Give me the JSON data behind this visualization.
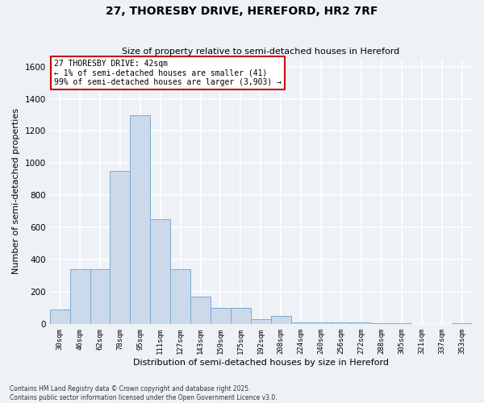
{
  "title_line1": "27, THORESBY DRIVE, HEREFORD, HR2 7RF",
  "title_line2": "Size of property relative to semi-detached houses in Hereford",
  "xlabel": "Distribution of semi-detached houses by size in Hereford",
  "ylabel": "Number of semi-detached properties",
  "annotation_title": "27 THORESBY DRIVE: 42sqm",
  "annotation_line2": "← 1% of semi-detached houses are smaller (41)",
  "annotation_line3": "99% of semi-detached houses are larger (3,903) →",
  "footer_line1": "Contains HM Land Registry data © Crown copyright and database right 2025.",
  "footer_line2": "Contains public sector information licensed under the Open Government Licence v3.0.",
  "categories": [
    "30sqm",
    "46sqm",
    "62sqm",
    "78sqm",
    "95sqm",
    "111sqm",
    "127sqm",
    "143sqm",
    "159sqm",
    "175sqm",
    "192sqm",
    "208sqm",
    "224sqm",
    "240sqm",
    "256sqm",
    "272sqm",
    "288sqm",
    "305sqm",
    "321sqm",
    "337sqm",
    "353sqm"
  ],
  "values": [
    90,
    340,
    340,
    950,
    1300,
    650,
    340,
    170,
    100,
    100,
    30,
    50,
    10,
    10,
    10,
    10,
    5,
    5,
    0,
    0,
    5
  ],
  "bar_color": "#ccd9ea",
  "bar_edge_color": "#7aaace",
  "background_color": "#eef2f7",
  "grid_color": "#ffffff",
  "annotation_box_color": "#cc0000",
  "ylim": [
    0,
    1650
  ],
  "yticks": [
    0,
    200,
    400,
    600,
    800,
    1000,
    1200,
    1400,
    1600
  ]
}
